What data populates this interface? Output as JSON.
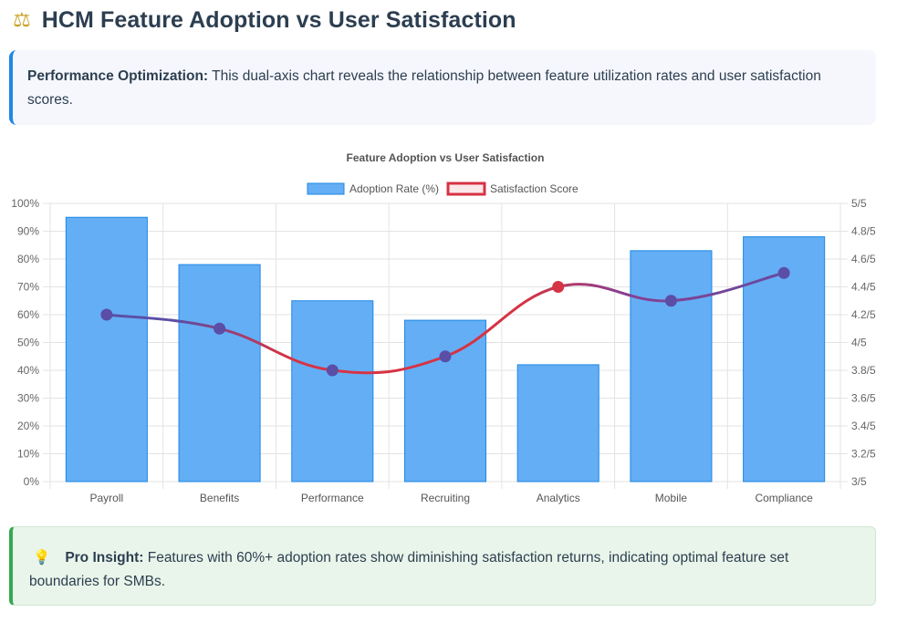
{
  "header": {
    "title": "HCM Feature Adoption vs User Satisfaction",
    "icon": "balance-scale-icon"
  },
  "info_callout": {
    "label": "Performance Optimization:",
    "text": " This dual-axis chart reveals the relationship between feature utilization rates and user satisfaction scores."
  },
  "chart_data": {
    "type": "bar",
    "title": "Feature Adoption vs User Satisfaction",
    "categories": [
      "Payroll",
      "Benefits",
      "Performance",
      "Recruiting",
      "Analytics",
      "Mobile",
      "Compliance"
    ],
    "series": [
      {
        "name": "Adoption Rate (%)",
        "type": "bar",
        "axis": "left",
        "values": [
          95,
          78,
          65,
          58,
          42,
          83,
          88
        ],
        "color": "#64aef5",
        "border": "#1e88e5"
      },
      {
        "name": "Satisfaction Score",
        "type": "line",
        "axis": "right",
        "values": [
          4.2,
          4.1,
          3.8,
          3.9,
          4.4,
          4.3,
          4.5
        ],
        "color": "#d63344",
        "point_color": "#5b4ea6"
      }
    ],
    "y_left": {
      "min": 0,
      "max": 100,
      "step": 10,
      "ticks": [
        "0%",
        "10%",
        "20%",
        "30%",
        "40%",
        "50%",
        "60%",
        "70%",
        "80%",
        "90%",
        "100%"
      ]
    },
    "y_right": {
      "min": 3,
      "max": 5,
      "step": 0.2,
      "ticks": [
        "3/5",
        "3.2/5",
        "3.4/5",
        "3.6/5",
        "3.8/5",
        "4/5",
        "4.2/5",
        "4.4/5",
        "4.6/5",
        "4.8/5",
        "5/5"
      ]
    },
    "legend_position": "top-center",
    "grid": true,
    "highlight_point_index": 4,
    "highlight_point_color": "#d63344"
  },
  "insight_callout": {
    "icon": "lightbulb-icon",
    "label": "Pro Insight:",
    "text": " Features with 60%+ adoption rates show diminishing satisfaction returns, indicating optimal feature set boundaries for SMBs."
  }
}
